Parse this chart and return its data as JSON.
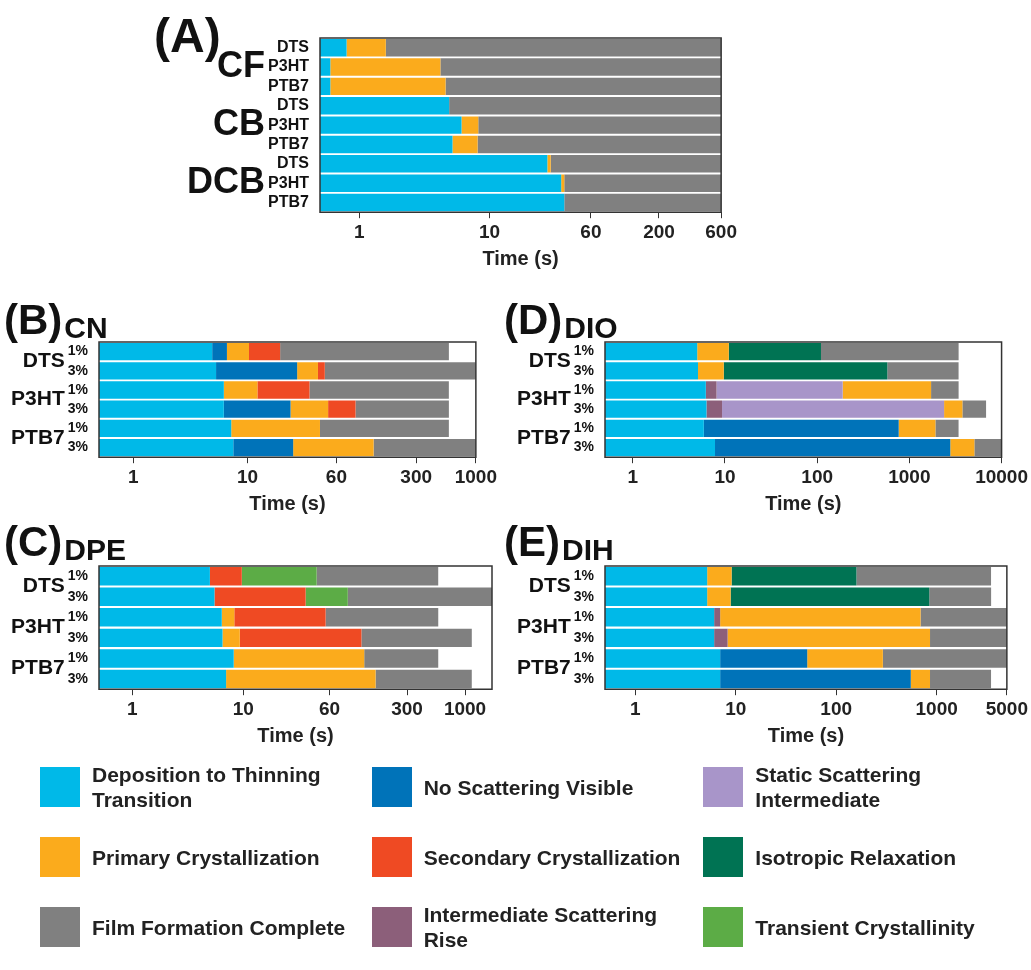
{
  "chart_data": [
    {
      "type": "bar",
      "orientation": "horizontal",
      "stacked": true,
      "log": "x",
      "legend": "bottom",
      "title": "(A)",
      "xlabel": "Time (s)",
      "categories": [
        "DTS",
        "P3HT",
        "PTB7",
        "DTS",
        "P3HT",
        "PTB7",
        "DTS",
        "P3HT",
        "PTB7"
      ],
      "annotations": [
        "CF",
        "CB",
        "DCB"
      ],
      "xlim": [
        0.5,
        600
      ],
      "xticks": [
        1,
        10,
        60,
        200,
        600
      ],
      "series": [
        {
          "name": "Deposition to Thinning Transition",
          "color": "#00b9e8",
          "values": [
            0.8,
            0.6,
            0.6,
            4.9,
            6.1,
            5.2,
            27.8,
            35.5,
            37.5
          ]
        },
        {
          "name": "Primary Crystallization",
          "color": "#fbab1c",
          "values": [
            0.8,
            3.6,
            4.0,
            null,
            2.1,
            2.9,
            1.7,
            2.0,
            null
          ]
        },
        {
          "name": "Film Formation Complete",
          "color": "#808080",
          "values": [
            598,
            596,
            595,
            595,
            592,
            592,
            571,
            563,
            563
          ]
        }
      ]
    },
    {
      "type": "bar",
      "orientation": "horizontal",
      "stacked": true,
      "log": "x",
      "legend": "bottom",
      "title": "(B)",
      "subtitle": "CN",
      "xlabel": "Time (s)",
      "categories": [
        "1%",
        "3%",
        "1%",
        "3%",
        "1%",
        "3%"
      ],
      "annotations": [
        "DTS",
        "P3HT",
        "PTB7"
      ],
      "xlim": [
        0.5,
        1000
      ],
      "xticks": [
        1,
        10,
        60,
        300,
        1000
      ],
      "series": [
        {
          "name": "Deposition to Thinning Transition",
          "color": "#00b9e8",
          "values": [
            4.9,
            5.3,
            6.2,
            6.2,
            7.2,
            7.5
          ]
        },
        {
          "name": "No Scattering Visible",
          "color": "#0073b9",
          "values": [
            1.7,
            21.9,
            null,
            17.6,
            null,
            17.6
          ]
        },
        {
          "name": "Primary Crystallization",
          "color": "#fbab1c",
          "values": [
            3.7,
            14.2,
            6.0,
            27,
            35.9,
            102
          ]
        },
        {
          "name": "Secondary Crystallization",
          "color": "#ef4a23",
          "values": [
            9.0,
            6.1,
            22.7,
            37.5,
            null,
            null
          ]
        },
        {
          "name": "Film Formation Complete",
          "color": "#808080",
          "values": [
            561,
            952,
            545,
            492,
            537,
            873
          ]
        }
      ]
    },
    {
      "type": "bar",
      "orientation": "horizontal",
      "stacked": true,
      "log": "x",
      "legend": "bottom",
      "title": "(D)",
      "subtitle": "DIO",
      "xlabel": "Time (s)",
      "categories": [
        "1%",
        "3%",
        "1%",
        "3%",
        "1%",
        "3%"
      ],
      "annotations": [
        "DTS",
        "P3HT",
        "PTB7"
      ],
      "xlim": [
        0.5,
        10000
      ],
      "xticks": [
        1,
        10,
        100,
        1000,
        10000
      ],
      "series": [
        {
          "name": "Deposition to Thinning Transition",
          "color": "#00b9e8",
          "values": [
            5.0,
            5.1,
            6.2,
            6.3,
            5.9,
            7.8
          ]
        },
        {
          "name": "No Scattering Visible",
          "color": "#0073b9",
          "values": [
            null,
            null,
            null,
            null,
            760,
            2770
          ]
        },
        {
          "name": "Intermediate Scattering Rise",
          "color": "#8c5f7a",
          "values": [
            null,
            null,
            1.9,
            3.0,
            null,
            null
          ]
        },
        {
          "name": "Static Scattering Intermediate",
          "color": "#a895c9",
          "values": [
            null,
            null,
            181,
            2370,
            null,
            null
          ]
        },
        {
          "name": "Primary Crystallization",
          "color": "#fbab1c",
          "values": [
            6.0,
            4.6,
            1530,
            1380,
            1150,
            2290
          ]
        },
        {
          "name": "Isotropic Relaxation",
          "color": "#007353",
          "values": [
            99,
            567,
            null,
            null,
            null,
            null
          ]
        },
        {
          "name": "Film Formation Complete",
          "color": "#808080",
          "values": [
            3310,
            2840,
            1700,
            3030,
            1500,
            4930
          ]
        }
      ]
    },
    {
      "type": "bar",
      "orientation": "horizontal",
      "stacked": true,
      "log": "x",
      "legend": "bottom",
      "title": "(C)",
      "subtitle": "DPE",
      "xlabel": "Time (s)",
      "categories": [
        "1%",
        "3%",
        "1%",
        "3%",
        "1%",
        "3%"
      ],
      "annotations": [
        "DTS",
        "P3HT",
        "PTB7"
      ],
      "xlim": [
        0.5,
        1750
      ],
      "xticks": [
        1,
        10,
        60,
        300,
        1000
      ],
      "series": [
        {
          "name": "Deposition to Thinning Transition",
          "color": "#00b9e8",
          "values": [
            5.0,
            5.5,
            6.4,
            6.5,
            8.2,
            7.0
          ]
        },
        {
          "name": "Primary Crystallization",
          "color": "#fbab1c",
          "values": [
            null,
            null,
            1.9,
            2.8,
            115,
            149
          ]
        },
        {
          "name": "Secondary Crystallization",
          "color": "#ef4a23",
          "values": [
            4.7,
            31.0,
            47,
            107,
            null,
            null
          ]
        },
        {
          "name": "Transient Crystallinity",
          "color": "#5cac46",
          "values": [
            36.2,
            51.1,
            null,
            null,
            null,
            null
          ]
        },
        {
          "name": "Film Formation Complete",
          "color": "#808080",
          "values": [
            527,
            1662,
            518,
            1034,
            450,
            994
          ]
        }
      ]
    },
    {
      "type": "bar",
      "orientation": "horizontal",
      "stacked": true,
      "log": "x",
      "legend": "bottom",
      "title": "(E)",
      "subtitle": "DIH",
      "xlabel": "Time (s)",
      "categories": [
        "1%",
        "3%",
        "1%",
        "3%",
        "1%",
        "3%"
      ],
      "annotations": [
        "DTS",
        "P3HT",
        "PTB7"
      ],
      "xlim": [
        0.5,
        5000
      ],
      "xticks": [
        1,
        10,
        100,
        1000,
        5000
      ],
      "series": [
        {
          "name": "Deposition to Thinning Transition",
          "color": "#00b9e8",
          "values": [
            5.2,
            5.2,
            6.1,
            6.1,
            7.0,
            7.0
          ]
        },
        {
          "name": "No Scattering Visible",
          "color": "#0073b9",
          "values": [
            null,
            null,
            null,
            null,
            44.5,
            546
          ]
        },
        {
          "name": "Intermediate Scattering Rise",
          "color": "#8c5f7a",
          "values": [
            null,
            null,
            0.9,
            2.2,
            null,
            null
          ]
        },
        {
          "name": "Primary Crystallization",
          "color": "#fbab1c",
          "values": [
            3.9,
            3.7,
            685,
            851,
            240,
            306
          ]
        },
        {
          "name": "Isotropic Relaxation",
          "color": "#007353",
          "values": [
            150,
            836,
            null,
            null,
            null,
            null
          ]
        },
        {
          "name": "Film Formation Complete",
          "color": "#808080",
          "values": [
            3320,
            2640,
            4310,
            4140,
            4710,
            2620
          ]
        }
      ]
    }
  ]
}
